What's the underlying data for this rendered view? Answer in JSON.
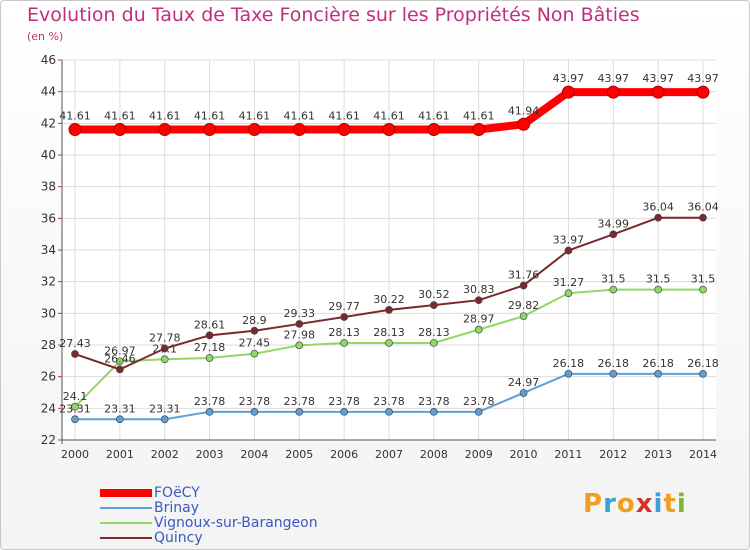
{
  "title": "Evolution du Taux de Taxe Foncière sur les Propriétés Non Bâties",
  "subtitle": "(en %)",
  "logo": {
    "letters": [
      "P",
      "r",
      "o",
      "x",
      "i",
      "t",
      "i"
    ],
    "colors": [
      "#f0a01e",
      "#3aa0d8",
      "#f0a01e",
      "#d6302a",
      "#3aa0d8",
      "#f0a01e",
      "#7cb83a"
    ]
  },
  "chart_data": {
    "type": "line",
    "x": [
      2000,
      2001,
      2002,
      2003,
      2004,
      2005,
      2006,
      2007,
      2008,
      2009,
      2010,
      2011,
      2012,
      2013,
      2014
    ],
    "ylim": [
      22,
      46
    ],
    "yticks": [
      22,
      24,
      26,
      28,
      30,
      32,
      34,
      36,
      38,
      40,
      42,
      44,
      46
    ],
    "grid": true,
    "legend": "bottom-left",
    "series": [
      {
        "name": "FOëCY",
        "color": "#ff0000",
        "values": [
          41.61,
          41.61,
          41.61,
          41.61,
          41.61,
          41.61,
          41.61,
          41.61,
          41.61,
          41.61,
          41.94,
          43.97,
          43.97,
          43.97,
          43.97
        ],
        "labels": [
          "41.61",
          "41.61",
          "41.61",
          "41.61",
          "41.61",
          "41.61",
          "41.61",
          "41.61",
          "41.61",
          "41.61",
          "41.94",
          "43.97",
          "43.97",
          "43.97",
          "43.97"
        ]
      },
      {
        "name": "Brinay",
        "color": "#5f9fd5",
        "values": [
          23.31,
          23.31,
          23.31,
          23.78,
          23.78,
          23.78,
          23.78,
          23.78,
          23.78,
          23.78,
          24.97,
          26.18,
          26.18,
          26.18,
          26.18
        ],
        "labels": [
          "23.31",
          "23.31",
          "23.31",
          "23.78",
          "23.78",
          "23.78",
          "23.78",
          "23.78",
          "23.78",
          "23.78",
          "24.97",
          "26.18",
          "26.18",
          "26.18",
          "26.18"
        ]
      },
      {
        "name": "Vignoux-sur-Barangeon",
        "color": "#8fd864",
        "values": [
          24.1,
          26.97,
          27.1,
          27.18,
          27.45,
          27.98,
          28.13,
          28.13,
          28.13,
          28.97,
          29.82,
          31.27,
          31.5,
          31.5,
          31.5
        ],
        "labels": [
          "24.1",
          "26.97",
          "27.1",
          "27.18",
          "27.45",
          "27.98",
          "28.13",
          "28.13",
          "28.13",
          "28.97",
          "29.82",
          "31.27",
          "31.5",
          "31.5",
          "31.5"
        ]
      },
      {
        "name": "Quincy",
        "color": "#7a2a2e",
        "values": [
          27.43,
          26.46,
          27.78,
          28.61,
          28.9,
          29.33,
          29.77,
          30.22,
          30.52,
          30.83,
          31.76,
          33.97,
          34.99,
          36.04,
          36.04
        ],
        "labels": [
          "27.43",
          "26.46",
          "27.78",
          "28.61",
          "28.9",
          "29.33",
          "29.77",
          "30.22",
          "30.52",
          "30.83",
          "31.76",
          "33.97",
          "34.99",
          "36.04",
          "36.04"
        ]
      }
    ]
  }
}
